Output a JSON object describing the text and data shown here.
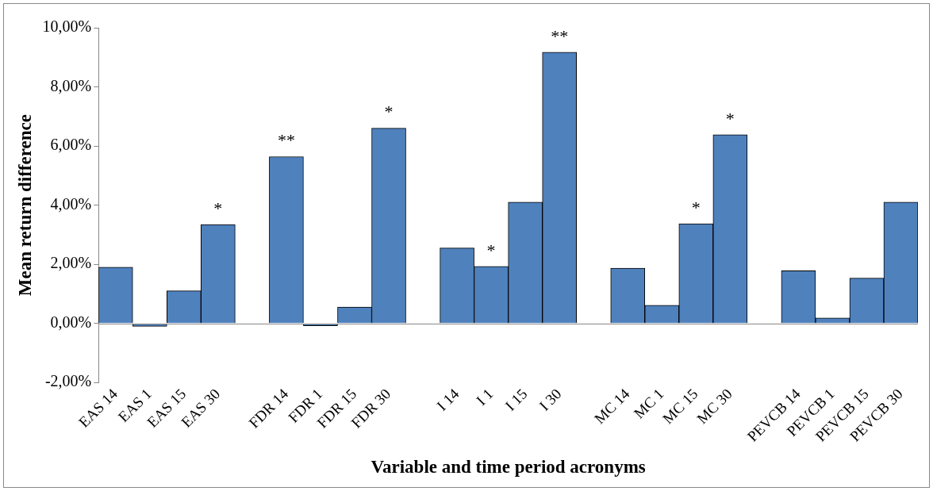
{
  "chart_data": {
    "type": "bar",
    "xlabel": "Variable and time period acronyms",
    "ylabel": "Mean return difference",
    "categories": [
      "EAS 14",
      "EAS 1",
      "EAS 15",
      "EAS 30",
      null,
      "FDR 14",
      "FDR 1",
      "FDR 15",
      "FDR 30",
      null,
      "I 14",
      "I 1",
      "I 15",
      "I 30",
      null,
      "MC 14",
      "MC 1",
      "MC 15",
      "MC 30",
      null,
      "PEVCB 14",
      "PEVCB 1",
      "PEVCB 15",
      "PEVCB 30"
    ],
    "values": [
      1.9,
      -0.1,
      1.1,
      3.34,
      null,
      5.64,
      -0.08,
      0.55,
      6.6,
      null,
      2.55,
      1.93,
      4.1,
      9.17,
      null,
      1.87,
      0.61,
      3.37,
      6.38,
      null,
      1.78,
      0.18,
      1.53,
      4.1
    ],
    "color": "#4f81bd",
    "ylim": [
      -2,
      10
    ],
    "yticks": [
      {
        "value": -2,
        "label": "-2,00%"
      },
      {
        "value": 0,
        "label": "0,00%"
      },
      {
        "value": 2,
        "label": "2,00%"
      },
      {
        "value": 4,
        "label": "4,00%"
      },
      {
        "value": 6,
        "label": "6,00%"
      },
      {
        "value": 8,
        "label": "8,00%"
      },
      {
        "value": 10,
        "label": "10,00%"
      }
    ],
    "grid": false,
    "legend": false,
    "ref_lines": [
      {
        "axis": "y",
        "value": 0,
        "color": "#898989"
      }
    ],
    "annotations": [
      {
        "text": "*",
        "x": "EAS 30",
        "y": 3.34
      },
      {
        "text": "**",
        "x": "FDR 14",
        "y": 5.64
      },
      {
        "text": "*",
        "x": "FDR 30",
        "y": 6.6
      },
      {
        "text": "*",
        "x": "I 1",
        "y": 1.93
      },
      {
        "text": "**",
        "x": "I 30",
        "y": 9.17
      },
      {
        "text": "*",
        "x": "MC 15",
        "y": 3.37
      },
      {
        "text": "*",
        "x": "MC 30",
        "y": 6.38
      }
    ]
  }
}
